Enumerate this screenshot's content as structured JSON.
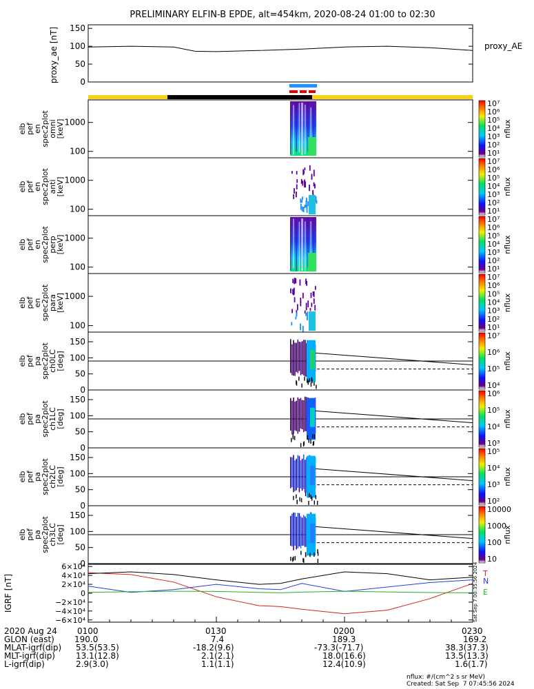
{
  "title": "PRELIMINARY ELFIN-B EPDE, alt=454km, 2020-08-24 01:00 to 02:30",
  "colors": {
    "ae_line": "#000000",
    "bar_day": "#f5d117",
    "bar_night": "#000000",
    "bar_blue": "#1e90ff",
    "bar_red": "#e00000",
    "igrf_total": "#000000",
    "igrf_n": "#1f3fd6",
    "igrf_e": "#22b022",
    "igrf_t": "#d42020"
  },
  "chart_data": [
    {
      "type": "line",
      "id": "proxy_ae",
      "ylabel": "proxy_ae [nT]",
      "legend": "proxy_AE",
      "ylim": [
        0,
        160
      ],
      "yticks": [
        0,
        50,
        100,
        150
      ],
      "x_minutes": [
        0,
        10,
        20,
        25,
        30,
        40,
        50,
        60,
        70,
        80,
        90
      ],
      "values": [
        98,
        100,
        98,
        86,
        85,
        88,
        92,
        98,
        100,
        96,
        88
      ]
    },
    {
      "type": "heatmap",
      "id": "spec_omni",
      "ylabel_lines": [
        "elb",
        "pef",
        "en",
        "spec2plot",
        "omni",
        "[keV]"
      ],
      "yscale": "log",
      "yticks": [
        100,
        1000
      ],
      "colorbar": {
        "label": "nflux",
        "ticks": [
          "10⁷",
          "10⁶",
          "10⁵",
          "10⁴",
          "10³",
          "10²",
          "10¹"
        ]
      }
    },
    {
      "type": "heatmap",
      "id": "spec_anti",
      "ylabel_lines": [
        "elb",
        "pef",
        "en",
        "spec2plot",
        "anti",
        "[keV]"
      ],
      "yscale": "log",
      "yticks": [
        100,
        1000
      ],
      "colorbar": {
        "label": "nflux",
        "ticks": [
          "10⁷",
          "10⁶",
          "10⁵",
          "10⁴",
          "10³",
          "10²",
          "10¹"
        ]
      }
    },
    {
      "type": "heatmap",
      "id": "spec_perp",
      "ylabel_lines": [
        "elb",
        "pef",
        "en",
        "spec2plot",
        "perp",
        "[keV]"
      ],
      "yscale": "log",
      "yticks": [
        100,
        1000
      ],
      "colorbar": {
        "label": "nflux",
        "ticks": [
          "10⁷",
          "10⁶",
          "10⁵",
          "10⁴",
          "10³",
          "10²",
          "10¹"
        ]
      }
    },
    {
      "type": "heatmap",
      "id": "spec_para",
      "ylabel_lines": [
        "elb",
        "pef",
        "en",
        "spec2plot",
        "para",
        "[keV]"
      ],
      "yscale": "log",
      "yticks": [
        100,
        1000
      ],
      "colorbar": {
        "label": "nflux",
        "ticks": [
          "10⁷",
          "10⁶",
          "10⁵",
          "10⁴",
          "10³",
          "10²",
          "10¹"
        ]
      }
    },
    {
      "type": "heatmap",
      "id": "pa_ch0",
      "ylabel_lines": [
        "elb",
        "pef",
        "pa",
        "spec2plot",
        "ch0LC",
        "[deg]"
      ],
      "ylim": [
        0,
        180
      ],
      "yticks": [
        0,
        50,
        100,
        150
      ],
      "colorbar": {
        "label": "nflux",
        "ticks": [
          "10⁷",
          "10⁶",
          "10⁵",
          "10⁴"
        ]
      }
    },
    {
      "type": "heatmap",
      "id": "pa_ch1",
      "ylabel_lines": [
        "elb",
        "pef",
        "pa",
        "spec2plot",
        "ch1LC",
        "[deg]"
      ],
      "ylim": [
        0,
        180
      ],
      "yticks": [
        0,
        50,
        100,
        150
      ],
      "colorbar": {
        "label": "nflux",
        "ticks": [
          "10⁶",
          "10⁵",
          "10⁴",
          "10³"
        ]
      }
    },
    {
      "type": "heatmap",
      "id": "pa_ch2",
      "ylabel_lines": [
        "elb",
        "pef",
        "pa",
        "spec2plot",
        "ch2LC",
        "[deg]"
      ],
      "ylim": [
        0,
        180
      ],
      "yticks": [
        0,
        50,
        100,
        150
      ],
      "colorbar": {
        "label": "nflux",
        "ticks": [
          "10⁵",
          "10⁴",
          "10³",
          "10²"
        ]
      }
    },
    {
      "type": "heatmap",
      "id": "pa_ch3",
      "ylabel_lines": [
        "elb",
        "pef",
        "pa",
        "spec2plot",
        "ch3LC",
        "[deg]"
      ],
      "ylim": [
        0,
        180
      ],
      "yticks": [
        0,
        50,
        100,
        150
      ],
      "colorbar": {
        "label": "nflux",
        "ticks": [
          "10000",
          "1000",
          "100",
          "10"
        ]
      }
    },
    {
      "type": "line",
      "id": "igrf",
      "ylabel": "IGRF [nT]",
      "ylim": [
        -65000,
        65000
      ],
      "yticks": [
        "6×10⁴",
        "4×10⁴",
        "2×10⁴",
        "0",
        "−2×10⁴",
        "−4×10⁴",
        "−6×10⁴"
      ],
      "legend": [
        "T",
        "N",
        "E"
      ],
      "x_minutes": [
        0,
        10,
        20,
        30,
        40,
        45,
        50,
        60,
        70,
        80,
        90
      ],
      "series": [
        {
          "name": "T",
          "color": "#d42020",
          "values": [
            46000,
            42000,
            25000,
            -8000,
            -28000,
            -30000,
            -36000,
            -46000,
            -38000,
            -12000,
            22000
          ]
        },
        {
          "name": "N",
          "color": "#1f3fd6",
          "values": [
            16000,
            2000,
            8000,
            20000,
            10000,
            8000,
            22000,
            4000,
            14000,
            24000,
            30000
          ]
        },
        {
          "name": "E",
          "color": "#22b022",
          "values": [
            2000,
            3500,
            4500,
            4000,
            2000,
            1000,
            2500,
            4500,
            3000,
            1500,
            1000
          ]
        },
        {
          "name": "",
          "color": "#000000",
          "values": [
            44000,
            48000,
            42000,
            30000,
            20000,
            22000,
            32000,
            48000,
            44000,
            30000,
            36000
          ]
        }
      ]
    }
  ],
  "time_axis": {
    "date": "2020 Aug 24",
    "ticks": [
      "0100",
      "0130",
      "0200",
      "0230"
    ]
  },
  "ephemeris": [
    {
      "label": "GLON (east)",
      "values": [
        "190.0",
        "7.4",
        "189.3",
        "169.2"
      ]
    },
    {
      "label": "MLAT-igrf(dip)",
      "values": [
        "53.5(53.5)",
        "-18.2(9.6)",
        "-73.3(-71.7)",
        "38.3(37.3)"
      ]
    },
    {
      "label": "MLT-igrf(dip)",
      "values": [
        "13.1(12.8)",
        "2.1(2.1)",
        "18.0(16.6)",
        "13.5(13.3)"
      ]
    },
    {
      "label": "L-igrf(dip)",
      "values": [
        "2.9(3.0)",
        "1.1(1.1)",
        "12.4(10.9)",
        "1.6(1.7)"
      ]
    }
  ],
  "footer": {
    "units": "nflux: #/(cm^2 s sr MeV)",
    "created": "Created: Sat Sep  7 07:45:56 2024",
    "stamp": "Sat Sep  7 00:35:56 2024"
  }
}
